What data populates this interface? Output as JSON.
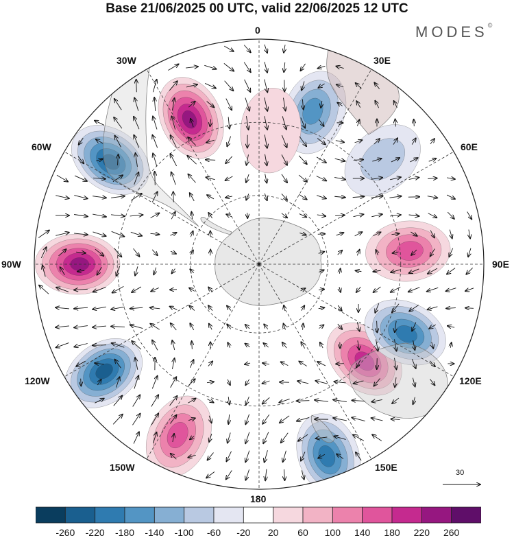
{
  "title": "Base 21/06/2025 00 UTC, valid 22/06/2025 12 UTC",
  "brand": {
    "name": "MODES",
    "mark": "©"
  },
  "longitude_labels": {
    "lon_0": "0",
    "lon_30e": "30E",
    "lon_60e": "60E",
    "lon_90e": "90E",
    "lon_120e": "120E",
    "lon_150e": "150E",
    "lon_180": "180",
    "lon_150w": "150W",
    "lon_120w": "120W",
    "lon_90w": "90W",
    "lon_60w": "60W",
    "lon_30w": "30W"
  },
  "reference_vector": {
    "value": "30"
  },
  "colorbar": {
    "labels": [
      "-260",
      "-220",
      "-180",
      "-140",
      "-100",
      "-60",
      "-20",
      "20",
      "60",
      "100",
      "140",
      "180",
      "220",
      "260"
    ],
    "colors": [
      "#0a3d5e",
      "#1a5f8f",
      "#2f7bb0",
      "#5395c4",
      "#86afd3",
      "#b9c9e2",
      "#e4e6f2",
      "#ffffff",
      "#f6d8df",
      "#f2b3c5",
      "#ec82ac",
      "#e0559c",
      "#c52a8f",
      "#961780",
      "#5f0e69"
    ]
  },
  "projection": {
    "type": "south-polar-stereographic",
    "parallels_deg": [
      -30,
      -50,
      -70
    ],
    "meridian_step_deg": 30
  },
  "anomaly_centers": [
    {
      "sign": "positive",
      "lon_deg": -25,
      "lat_deg": -45,
      "magnitude": 240
    },
    {
      "sign": "negative",
      "lon_deg": 20,
      "lat_deg": -45,
      "magnitude": 160
    },
    {
      "sign": "negative",
      "lon_deg": -55,
      "lat_deg": -40,
      "magnitude": 240
    },
    {
      "sign": "positive",
      "lon_deg": -90,
      "lat_deg": -40,
      "magnitude": 250
    },
    {
      "sign": "negative",
      "lon_deg": -125,
      "lat_deg": -38,
      "magnitude": 230
    },
    {
      "sign": "positive",
      "lon_deg": -155,
      "lat_deg": -38,
      "magnitude": 150
    },
    {
      "sign": "negative",
      "lon_deg": 160,
      "lat_deg": -35,
      "magnitude": 200
    },
    {
      "sign": "positive",
      "lon_deg": 132,
      "lat_deg": -50,
      "magnitude": 200
    },
    {
      "sign": "negative",
      "lon_deg": 115,
      "lat_deg": -45,
      "magnitude": 200
    },
    {
      "sign": "positive",
      "lon_deg": 85,
      "lat_deg": -48,
      "magnitude": 150
    },
    {
      "sign": "negative",
      "lon_deg": 50,
      "lat_deg": -45,
      "magnitude": 80
    },
    {
      "sign": "positive",
      "lon_deg": 5,
      "lat_deg": -52,
      "magnitude": 40
    }
  ]
}
